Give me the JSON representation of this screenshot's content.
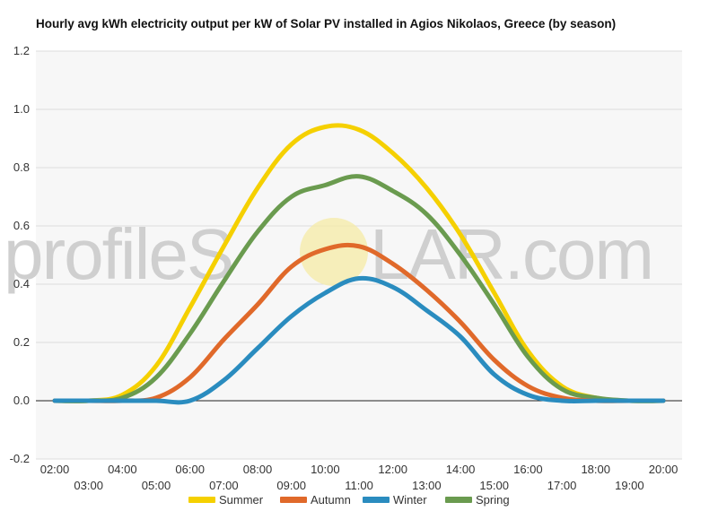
{
  "chart_data": {
    "type": "line",
    "title": "Hourly avg kWh electricity output per kW of Solar PV installed in Agios Nikolaos, Greece (by season)",
    "xlabel": "",
    "ylabel": "",
    "x": [
      "02:00",
      "03:00",
      "04:00",
      "05:00",
      "06:00",
      "07:00",
      "08:00",
      "09:00",
      "10:00",
      "11:00",
      "12:00",
      "13:00",
      "14:00",
      "15:00",
      "16:00",
      "17:00",
      "18:00",
      "19:00",
      "20:00"
    ],
    "ylim": [
      -0.2,
      1.2
    ],
    "yticks": [
      "1.2",
      "1.0",
      "0.8",
      "0.6",
      "0.4",
      "0.2",
      "0.0",
      "-0.2"
    ],
    "grid": true,
    "legend_position": "bottom",
    "series": [
      {
        "name": "Summer",
        "color": "#f5d000",
        "values": [
          0,
          0,
          0.02,
          0.12,
          0.32,
          0.53,
          0.73,
          0.88,
          0.94,
          0.93,
          0.85,
          0.73,
          0.57,
          0.37,
          0.17,
          0.05,
          0.01,
          0,
          0
        ]
      },
      {
        "name": "Autumn",
        "color": "#e0692a",
        "values": [
          0,
          0,
          0,
          0.01,
          0.08,
          0.21,
          0.33,
          0.46,
          0.52,
          0.53,
          0.47,
          0.38,
          0.27,
          0.14,
          0.05,
          0.01,
          0,
          0,
          0
        ]
      },
      {
        "name": "Winter",
        "color": "#2a8cbf",
        "values": [
          0,
          0,
          0,
          0,
          0,
          0.07,
          0.18,
          0.29,
          0.37,
          0.42,
          0.39,
          0.31,
          0.22,
          0.09,
          0.02,
          0,
          0,
          0,
          0
        ]
      },
      {
        "name": "Spring",
        "color": "#6a9b4f",
        "values": [
          0,
          0,
          0.01,
          0.08,
          0.23,
          0.41,
          0.58,
          0.7,
          0.74,
          0.77,
          0.72,
          0.64,
          0.5,
          0.33,
          0.15,
          0.04,
          0.01,
          0,
          0
        ]
      }
    ]
  },
  "watermark": {
    "left": "profileS",
    "right": "LAR.com"
  }
}
